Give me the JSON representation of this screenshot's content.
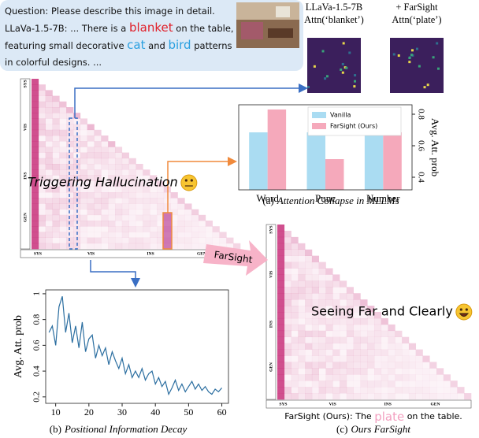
{
  "question_box": {
    "question": "Question: Please describe this image in detail.",
    "answer_parts": [
      "LLaVa-1.5-7B: ... There is a ",
      "blanket",
      " on the table, featuring small decorative ",
      "cat",
      " and ",
      "bird",
      " patterns in colorful designs. ..."
    ]
  },
  "attention_maps": [
    {
      "lines": [
        "LLaVa-1.5-7B",
        "Attn(‘blanket’)"
      ]
    },
    {
      "lines": [
        "+ FarSight",
        "Attn(‘plate’)"
      ]
    }
  ],
  "hallucination_map": {
    "annotation": "Triggering Hallucination",
    "segments": [
      "SYS",
      "VIS",
      "INS",
      "GEN"
    ]
  },
  "arrow_label": "FarSight",
  "ours_map": {
    "annotation": "Seeing Far and Clearly",
    "segments": [
      "SYS",
      "VIS",
      "INS",
      "GEN"
    ],
    "caption_parts": [
      "FarSight (Ours): The ",
      "plate",
      " on the table."
    ]
  },
  "captions": [
    {
      "label": "(a)",
      "text": "Attention Collapse in MLLMs"
    },
    {
      "label": "(b)",
      "text": "Positional Information Decay"
    },
    {
      "label": "(c)",
      "text": "Ours FarSight"
    }
  ],
  "chart_data": [
    {
      "type": "bar",
      "ylabel": "Avg. Att. prob",
      "categories": [
        "Word",
        "Punc",
        "Number"
      ],
      "series": [
        {
          "name": "Vanilla",
          "color": "#aadcf2",
          "values": [
            0.685,
            0.685,
            0.78
          ]
        },
        {
          "name": "FarSight (Ours)",
          "color": "#f5a9bb",
          "values": [
            0.83,
            0.515,
            0.685
          ]
        }
      ],
      "ylim": [
        0.32,
        0.86
      ],
      "yticks": [
        0.4,
        0.6,
        0.8
      ],
      "legend": "top"
    },
    {
      "type": "line",
      "ylabel": "Avg. Att. prob",
      "color": "#2b6ea0",
      "x": [
        8,
        9,
        10,
        11,
        12,
        13,
        14,
        15,
        16,
        17,
        18,
        19,
        20,
        21,
        22,
        23,
        24,
        25,
        26,
        27,
        28,
        29,
        30,
        31,
        32,
        33,
        34,
        35,
        36,
        37,
        38,
        39,
        40,
        41,
        42,
        43,
        44,
        45,
        46,
        47,
        48,
        49,
        50,
        51,
        52,
        53,
        54,
        55,
        56,
        57,
        58,
        59,
        60
      ],
      "values": [
        0.7,
        0.75,
        0.6,
        0.9,
        0.98,
        0.7,
        0.85,
        0.62,
        0.75,
        0.58,
        0.78,
        0.55,
        0.65,
        0.68,
        0.5,
        0.6,
        0.52,
        0.58,
        0.45,
        0.55,
        0.48,
        0.42,
        0.5,
        0.38,
        0.45,
        0.35,
        0.4,
        0.35,
        0.42,
        0.33,
        0.38,
        0.4,
        0.3,
        0.35,
        0.28,
        0.32,
        0.22,
        0.27,
        0.33,
        0.25,
        0.3,
        0.24,
        0.28,
        0.32,
        0.26,
        0.3,
        0.25,
        0.28,
        0.24,
        0.22,
        0.26,
        0.24,
        0.27
      ],
      "xlim": [
        7,
        62
      ],
      "xticks": [
        10,
        20,
        30,
        40,
        50,
        60
      ],
      "ylim": [
        0.15,
        1.03
      ],
      "yticks": [
        0.2,
        0.4,
        0.6,
        0.8,
        {
          "value": 1,
          "label": "1"
        }
      ]
    }
  ]
}
